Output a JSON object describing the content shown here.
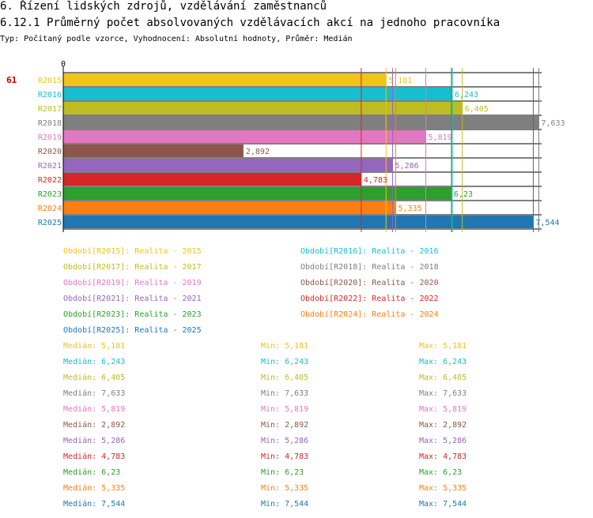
{
  "header": {
    "title": "6. Řízení lidských zdrojů, vzdělávání zaměstnanců",
    "subtitle": "6.12.1 Průměrný počet absolvovaných vzdělávacích akcí na jednoho pracovníka",
    "type_line": "Typ: Počítaný podle vzorce, Vyhodnocení: Absolutní hodnoty, Průměr: Medián"
  },
  "chart_data": {
    "type": "bar",
    "orientation": "horizontal",
    "axis_zero_label": "0",
    "row_marker": "61",
    "xlim": [
      0,
      8.0
    ],
    "categories": [
      "R2015",
      "R2016",
      "R2017",
      "R2018",
      "R2019",
      "R2020",
      "R2021",
      "R2022",
      "R2023",
      "R2024",
      "R2025"
    ],
    "values": [
      5.181,
      6.243,
      6.405,
      7.633,
      5.819,
      2.892,
      5.286,
      4.783,
      6.23,
      5.335,
      7.544
    ],
    "value_labels": [
      "5,181",
      "6,243",
      "6,405",
      "7,633",
      "5,819",
      "2,892",
      "5,286",
      "4,783",
      "6,23",
      "5,335",
      "7,544"
    ],
    "colors": [
      "#f0c419",
      "#17becf",
      "#bcbd22",
      "#7f7f7f",
      "#e377c2",
      "#8c564b",
      "#9467bd",
      "#d62728",
      "#2ca02c",
      "#ff7f0e",
      "#1f77b4"
    ],
    "reference_lines": [
      {
        "value": 5.181,
        "color": "#f0c419"
      },
      {
        "value": 6.243,
        "color": "#17becf"
      },
      {
        "value": 6.405,
        "color": "#bcbd22"
      },
      {
        "value": 7.633,
        "color": "#7f7f7f"
      },
      {
        "value": 5.819,
        "color": "#e377c2"
      },
      {
        "value": 5.286,
        "color": "#9467bd"
      },
      {
        "value": 4.783,
        "color": "#d62728"
      },
      {
        "value": 6.23,
        "color": "#2ca02c"
      },
      {
        "value": 5.335,
        "color": "#ff7f0e"
      },
      {
        "value": 7.544,
        "color": "#1f77b4"
      }
    ]
  },
  "legend": [
    {
      "label": "Období[R2015]: Realita - 2015",
      "color": "#f0c419"
    },
    {
      "label": "Období[R2016]: Realita - 2016",
      "color": "#17becf"
    },
    {
      "label": "Období[R2017]: Realita - 2017",
      "color": "#bcbd22"
    },
    {
      "label": "Období[R2018]: Realita - 2018",
      "color": "#7f7f7f"
    },
    {
      "label": "Období[R2019]: Realita - 2019",
      "color": "#e377c2"
    },
    {
      "label": "Období[R2020]: Realita - 2020",
      "color": "#8c564b"
    },
    {
      "label": "Období[R2021]: Realita - 2021",
      "color": "#9467bd"
    },
    {
      "label": "Období[R2022]: Realita - 2022",
      "color": "#d62728"
    },
    {
      "label": "Období[R2023]: Realita - 2023",
      "color": "#2ca02c"
    },
    {
      "label": "Období[R2024]: Realita - 2024",
      "color": "#ff7f0e"
    },
    {
      "label": "Období[R2025]: Realita - 2025",
      "color": "#1f77b4"
    }
  ],
  "stats": [
    {
      "median": "Medián: 5,181",
      "min": "Min: 5,181",
      "max": "Max: 5,181",
      "color": "#f0c419"
    },
    {
      "median": "Medián: 6,243",
      "min": "Min: 6,243",
      "max": "Max: 6,243",
      "color": "#17becf"
    },
    {
      "median": "Medián: 6,405",
      "min": "Min: 6,405",
      "max": "Max: 6,405",
      "color": "#bcbd22"
    },
    {
      "median": "Medián: 7,633",
      "min": "Min: 7,633",
      "max": "Max: 7,633",
      "color": "#7f7f7f"
    },
    {
      "median": "Medián: 5,819",
      "min": "Min: 5,819",
      "max": "Max: 5,819",
      "color": "#e377c2"
    },
    {
      "median": "Medián: 2,892",
      "min": "Min: 2,892",
      "max": "Max: 2,892",
      "color": "#8c564b"
    },
    {
      "median": "Medián: 5,286",
      "min": "Min: 5,286",
      "max": "Max: 5,286",
      "color": "#9467bd"
    },
    {
      "median": "Medián: 4,783",
      "min": "Min: 4,783",
      "max": "Max: 4,783",
      "color": "#d62728"
    },
    {
      "median": "Medián: 6,23",
      "min": "Min: 6,23",
      "max": "Max: 6,23",
      "color": "#2ca02c"
    },
    {
      "median": "Medián: 5,335",
      "min": "Min: 5,335",
      "max": "Max: 5,335",
      "color": "#ff7f0e"
    },
    {
      "median": "Medián: 7,544",
      "min": "Min: 7,544",
      "max": "Max: 7,544",
      "color": "#1f77b4"
    }
  ]
}
